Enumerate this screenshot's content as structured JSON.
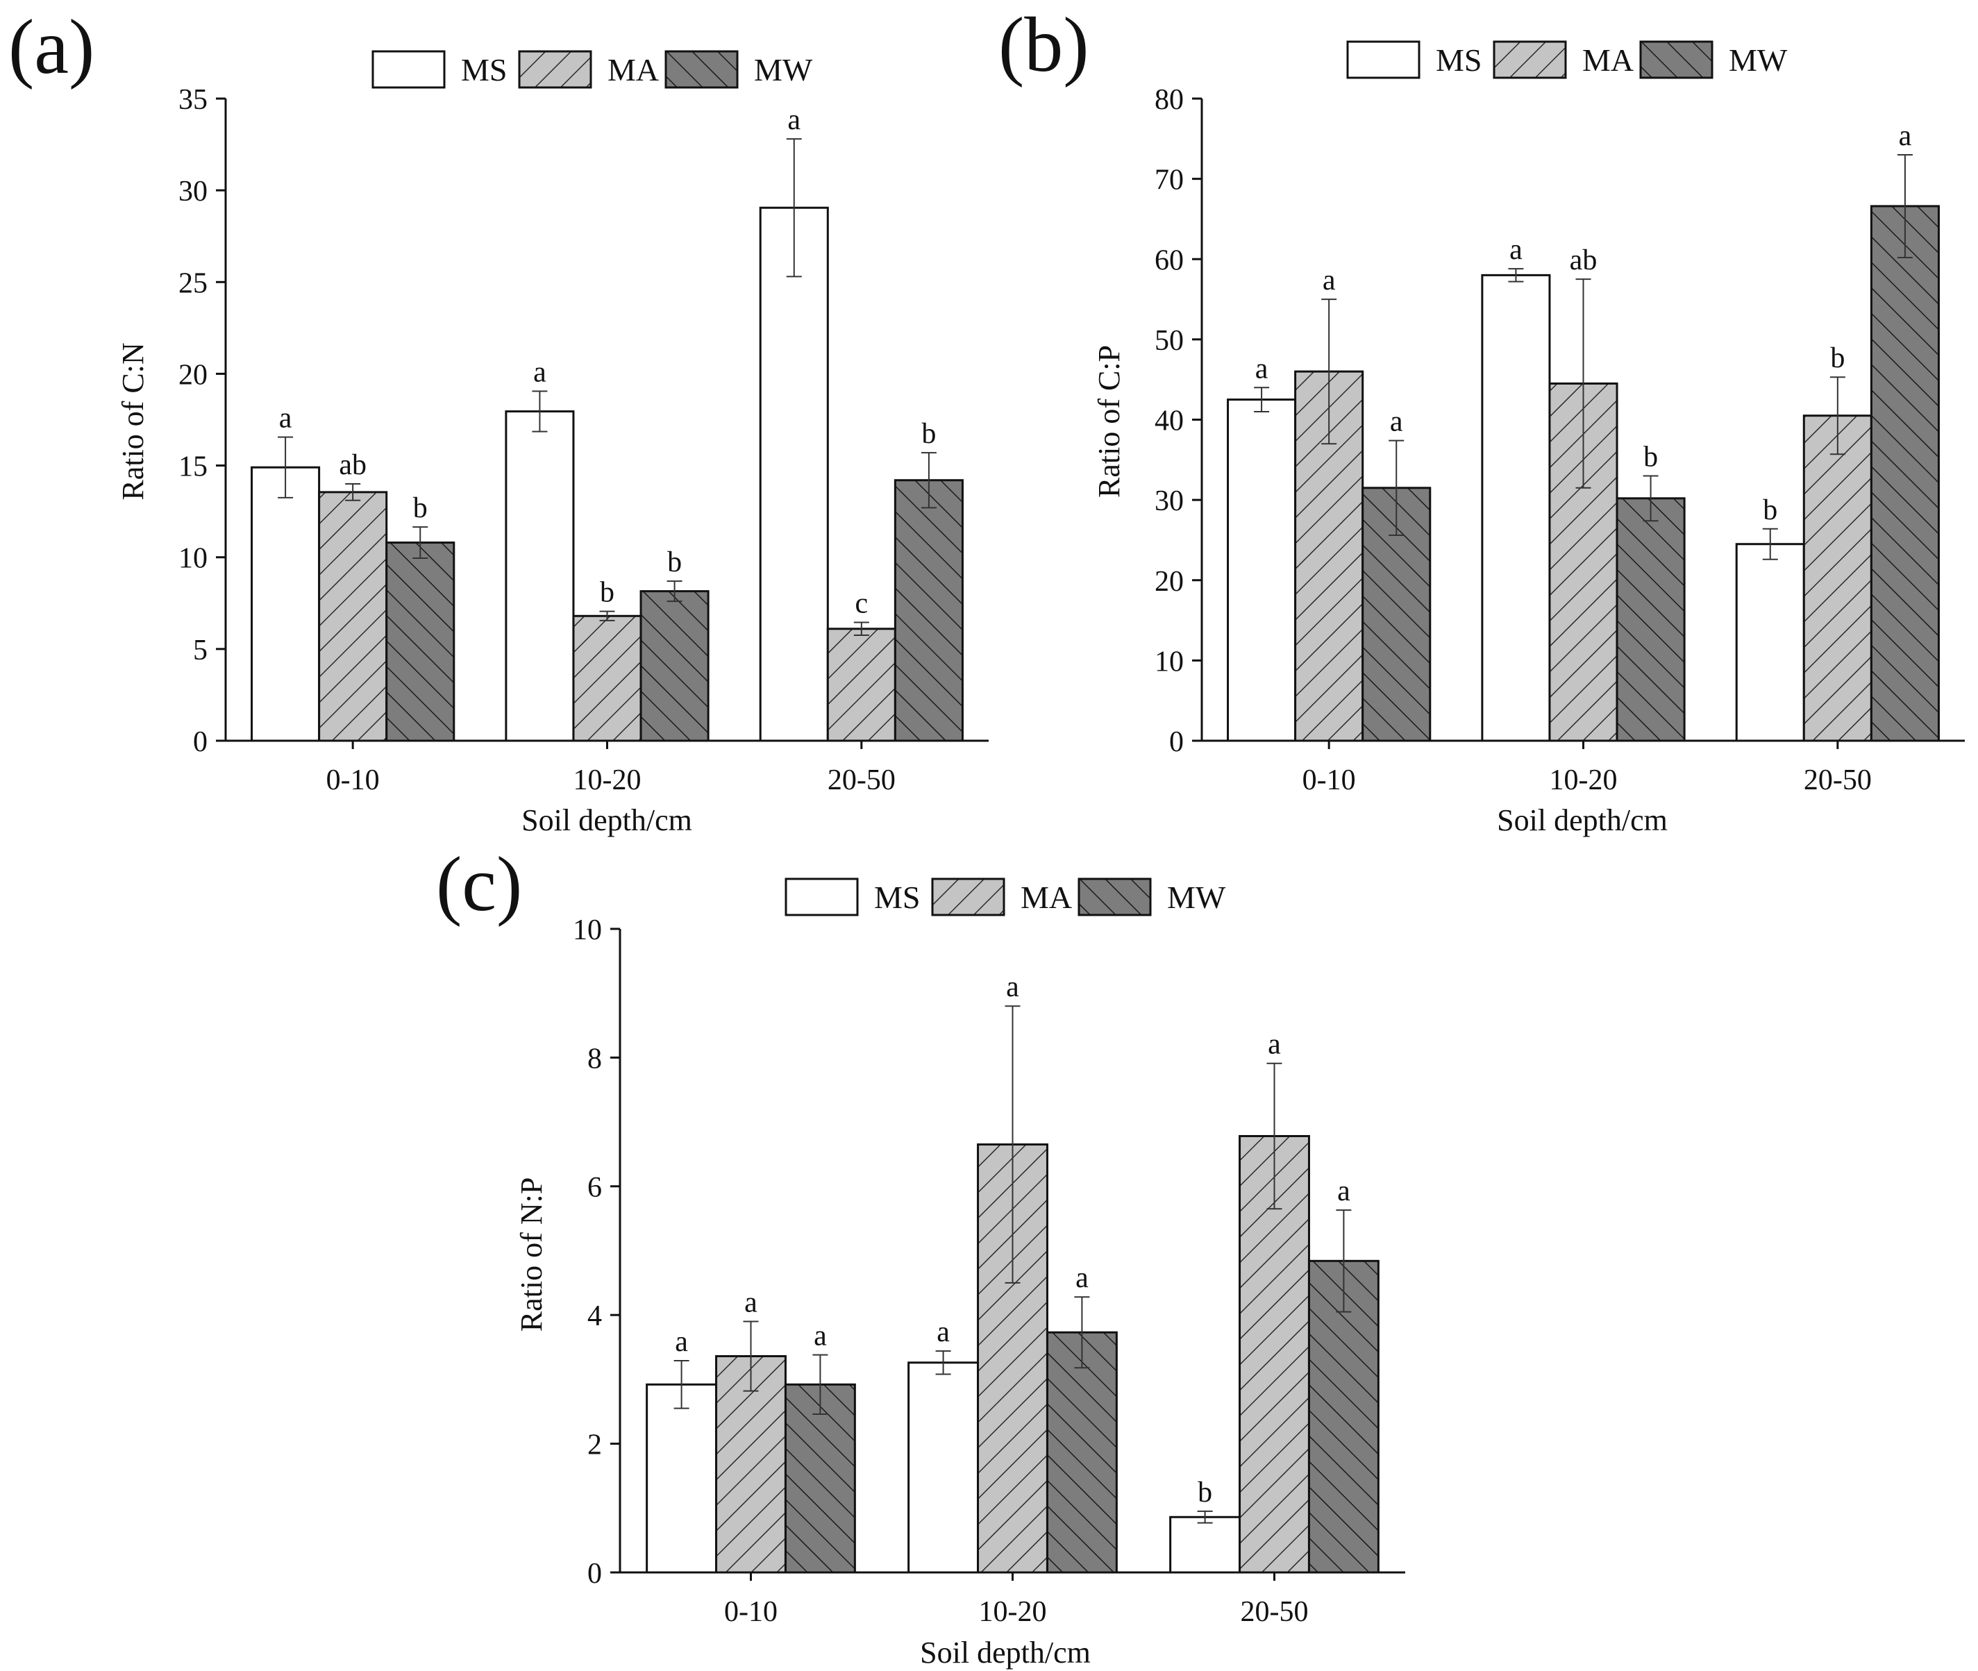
{
  "colors": {
    "ms_fill": "#ffffff",
    "ma_fill": "#c4c4c4",
    "mw_fill": "#7d7d7d",
    "hatch_ma": "#2a2a2a",
    "hatch_mw": "#1a1a1a",
    "outline": "#111111"
  },
  "legend": [
    "MS",
    "MA",
    "MW"
  ],
  "chart_data": [
    {
      "type": "bar",
      "panel": "(a)",
      "title": "",
      "xlabel": "Soil depth/cm",
      "ylabel": "Ratio of C:N",
      "ylim": [
        0,
        35
      ],
      "yticks": [
        0,
        5,
        10,
        15,
        20,
        25,
        30,
        35
      ],
      "categories": [
        "0-10",
        "10-20",
        "20-50"
      ],
      "series": [
        {
          "name": "MS",
          "values": [
            14.9,
            17.95,
            29.05
          ],
          "errors": [
            1.65,
            1.1,
            3.75
          ],
          "letters": [
            "a",
            "a",
            "a"
          ]
        },
        {
          "name": "MA",
          "values": [
            13.55,
            6.8,
            6.1
          ],
          "errors": [
            0.45,
            0.25,
            0.35
          ],
          "letters": [
            "ab",
            "b",
            "c"
          ]
        },
        {
          "name": "MW",
          "values": [
            10.8,
            8.15,
            14.2
          ],
          "errors": [
            0.85,
            0.55,
            1.5
          ],
          "letters": [
            "b",
            "b",
            "b"
          ]
        }
      ]
    },
    {
      "type": "bar",
      "panel": "(b)",
      "title": "",
      "xlabel": "Soil depth/cm",
      "ylabel": "Ratio of C:P",
      "ylim": [
        0,
        80
      ],
      "yticks": [
        0,
        10,
        20,
        30,
        40,
        50,
        60,
        70,
        80
      ],
      "categories": [
        "0-10",
        "10-20",
        "20-50"
      ],
      "series": [
        {
          "name": "MS",
          "values": [
            42.5,
            58.0,
            24.5
          ],
          "errors": [
            1.5,
            0.8,
            1.9
          ],
          "letters": [
            "a",
            "a",
            "b"
          ]
        },
        {
          "name": "MA",
          "values": [
            46.0,
            44.5,
            40.5
          ],
          "errors": [
            9.0,
            13.0,
            4.8
          ],
          "letters": [
            "a",
            "ab",
            "b"
          ]
        },
        {
          "name": "MW",
          "values": [
            31.5,
            30.2,
            66.6
          ],
          "errors": [
            5.9,
            2.8,
            6.4
          ],
          "letters": [
            "a",
            "b",
            "a"
          ]
        }
      ]
    },
    {
      "type": "bar",
      "panel": "(c)",
      "title": "",
      "xlabel": "Soil depth/cm",
      "ylabel": "Ratio of N:P",
      "ylim": [
        0,
        10
      ],
      "yticks": [
        0,
        2,
        4,
        6,
        8,
        10
      ],
      "categories": [
        "0-10",
        "10-20",
        "20-50"
      ],
      "series": [
        {
          "name": "MS",
          "values": [
            2.92,
            3.26,
            0.86
          ],
          "errors": [
            0.37,
            0.18,
            0.09
          ],
          "letters": [
            "a",
            "a",
            "b"
          ]
        },
        {
          "name": "MA",
          "values": [
            3.36,
            6.65,
            6.78
          ],
          "errors": [
            0.54,
            2.15,
            1.13
          ],
          "letters": [
            "a",
            "a",
            "a"
          ]
        },
        {
          "name": "MW",
          "values": [
            2.92,
            3.73,
            4.84
          ],
          "errors": [
            0.46,
            0.55,
            0.79
          ],
          "letters": [
            "a",
            "a",
            "a"
          ]
        }
      ]
    }
  ]
}
